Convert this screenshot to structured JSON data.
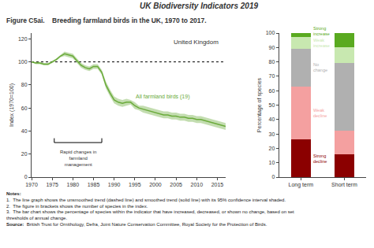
{
  "title": "UK Biodiversity Indicators 2019",
  "subtitle": "Figure C5ai.    Breeding farmland birds in the UK, 1970 to 2017.",
  "annotations": [
    "Notes:",
    "1.  The line graph shows the unsmoothed trend (dashed line) and smoothed trend (solid line) with its 95% confidence interval shaded.",
    "2.  The figure in brackets shows the number of species in the index.",
    "3.  The bar chart shows the percentage of species within the indicator that have increased, decreased, or shown no change, based on set thresholds of annual change.",
    [
      "Source:",
      "  British Trust for Ornithology, Defra, Joint Nature Conservation Committee, Royal Society for the Protection of Birds."
    ]
  ],
  "chart_data": [
    {
      "type": "line",
      "title": "United Kingdom",
      "ylabel": "Index (1970=100)",
      "x": [
        1970,
        1971,
        1972,
        1973,
        1974,
        1975,
        1976,
        1977,
        1978,
        1979,
        1980,
        1981,
        1982,
        1983,
        1984,
        1985,
        1986,
        1987,
        1988,
        1989,
        1990,
        1991,
        1992,
        1993,
        1994,
        1995,
        1996,
        1997,
        1998,
        1999,
        2000,
        2001,
        2002,
        2003,
        2004,
        2005,
        2006,
        2007,
        2008,
        2009,
        2010,
        2011,
        2012,
        2013,
        2014,
        2015,
        2016,
        2017
      ],
      "xlim": [
        1970,
        2017
      ],
      "xticks": [
        1970,
        1975,
        1980,
        1985,
        1990,
        1995,
        2000,
        2005,
        2010,
        2015
      ],
      "ylim": [
        0,
        125
      ],
      "yticks": [
        0,
        20,
        40,
        60,
        80,
        100,
        120
      ],
      "grid": false,
      "reference_line": 100,
      "annotations": [
        "Rapid changes in\nfarmland\nmanagement"
      ],
      "series": [
        {
          "name": "All farmland birds (19)",
          "color": "#6aaa3a",
          "values": [
            100,
            99,
            99,
            98,
            98,
            100,
            102,
            105,
            107,
            106,
            105,
            101,
            97,
            95,
            94,
            96,
            96,
            91,
            80,
            73,
            67,
            65,
            64,
            65,
            65,
            62,
            60,
            59,
            58,
            57,
            56,
            55,
            54,
            54,
            53,
            53,
            52,
            52,
            51,
            51,
            50,
            50,
            49,
            48,
            47,
            46,
            45,
            44
          ],
          "upper": [
            100,
            100,
            100,
            99,
            99,
            101,
            103,
            106,
            109,
            108,
            107,
            103,
            99,
            97,
            96,
            98,
            98,
            93,
            83,
            76,
            70,
            68,
            67,
            68,
            67,
            65,
            62,
            62,
            61,
            60,
            59,
            58,
            57,
            57,
            56,
            56,
            55,
            55,
            54,
            54,
            53,
            53,
            52,
            51,
            50,
            49,
            48,
            47
          ],
          "lower": [
            100,
            98,
            98,
            97,
            97,
            99,
            101,
            104,
            105,
            104,
            103,
            99,
            95,
            93,
            92,
            94,
            94,
            89,
            77,
            70,
            64,
            62,
            61,
            62,
            63,
            59,
            58,
            56,
            55,
            54,
            53,
            52,
            51,
            51,
            50,
            50,
            49,
            49,
            48,
            48,
            47,
            47,
            46,
            45,
            44,
            43,
            42,
            41
          ]
        }
      ]
    },
    {
      "type": "bar",
      "stacked": true,
      "ylabel": "Percentage of species",
      "categories": [
        "Long term",
        "Short term"
      ],
      "ylim": [
        0,
        100
      ],
      "yticks": [
        0,
        10,
        20,
        30,
        40,
        50,
        60,
        70,
        80,
        90,
        100
      ],
      "grid": false,
      "series": [
        {
          "name": "Strong\ndecline",
          "color": "#8b0000",
          "values": [
            26,
            16
          ]
        },
        {
          "name": "Weak\ndecline",
          "color": "#f4a0a0",
          "values": [
            37,
            16
          ]
        },
        {
          "name": "No\nchange",
          "color": "#b0b0b0",
          "values": [
            26,
            47
          ]
        },
        {
          "name": "Weak\nincrease",
          "color": "#c8e8b0",
          "values": [
            8,
            11
          ]
        },
        {
          "name": "Strong\nincrease",
          "color": "#5aaa20",
          "values": [
            3,
            10
          ]
        }
      ]
    }
  ]
}
